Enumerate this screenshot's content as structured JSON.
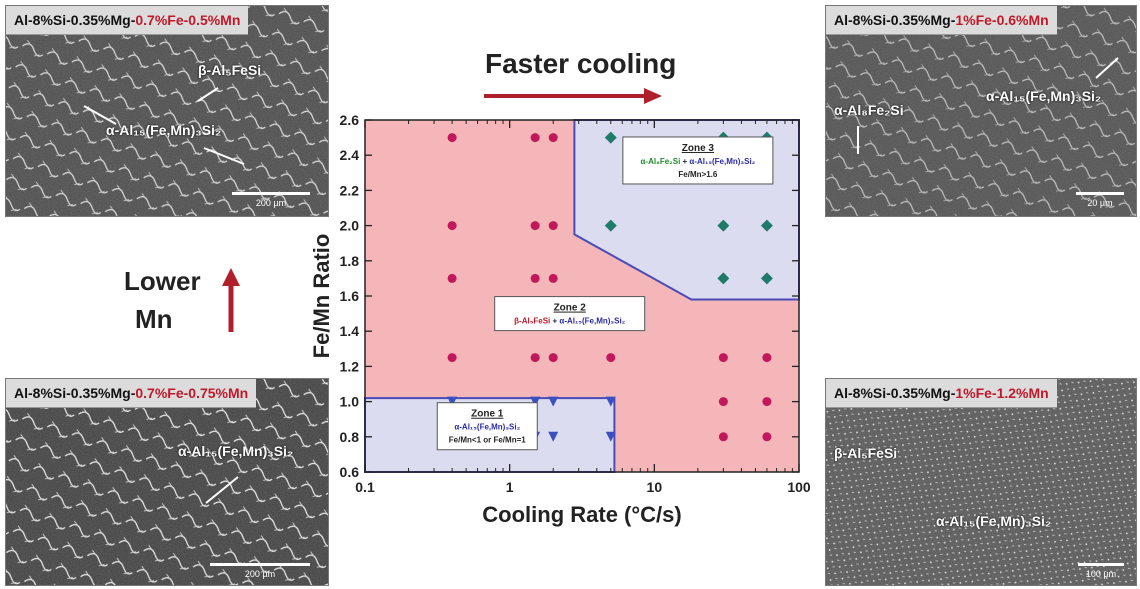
{
  "panels": {
    "top_left": {
      "caption_prefix": "Al-8%Si-0.35%Mg-",
      "caption_highlight": "0.7%Fe-0.5%Mn",
      "phase_a": "β-Al₅FeSi",
      "phase_b": "α-Al₁₅(Fe,Mn)₃Si₂",
      "scalebar": "200 µm"
    },
    "top_right": {
      "caption_prefix": "Al-8%Si-0.35%Mg-",
      "caption_highlight": "1%Fe-0.6%Mn",
      "phase_a": "α-Al₈Fe₂Si",
      "phase_b": "α-Al₁₅(Fe,Mn)₃Si₂",
      "scalebar": "20 µm"
    },
    "bottom_left": {
      "caption_prefix": "Al-8%Si-0.35%Mg-",
      "caption_highlight": "0.7%Fe-0.75%Mn",
      "phase_a": "α-Al₁₅(Fe,Mn)₃Si₂",
      "scalebar": "200 µm"
    },
    "bottom_right": {
      "caption_prefix": "Al-8%Si-0.35%Mg-",
      "caption_highlight": "1%Fe-1.2%Mn",
      "phase_a": "β-Al₅FeSi",
      "phase_b": "α-Al₁₅(Fe,Mn)₃Si₂",
      "scalebar": "100 µm"
    }
  },
  "annotations": {
    "faster_cooling": "Faster cooling",
    "lower_mn_line1": "Lower",
    "lower_mn_line2": "Mn"
  },
  "colors": {
    "highlight_red": "#c0192a",
    "arrow_red": "#b0202a",
    "zone2_fill": "#f4b6b9",
    "zone13_fill": "#dcdcf0",
    "zone_border": "#4a4ab8",
    "circle_marker": "#c2185b",
    "triangle_marker": "#3b4fc0",
    "diamond_marker": "#1f7a6a",
    "phase_green": "#1f8a2e",
    "phase_blue": "#2a2aa8"
  },
  "chart_data": {
    "type": "scatter",
    "xlabel": "Cooling Rate (°C/s)",
    "ylabel": "Fe/Mn Ratio",
    "x_scale": "log",
    "xlim": [
      0.1,
      100
    ],
    "ylim": [
      0.6,
      2.6
    ],
    "x_ticks": [
      "0.1",
      "1",
      "10",
      "100"
    ],
    "y_ticks": [
      "0.6",
      "0.8",
      "1.0",
      "1.2",
      "1.4",
      "1.6",
      "1.8",
      "2.0",
      "2.2",
      "2.4",
      "2.6"
    ],
    "zones": [
      {
        "name": "Zone 1",
        "phase_a": "α-Al₁₅(Fe,Mn)₃Si₂",
        "condition": "Fe/Mn<1 or Fe/Mn=1",
        "boundary": [
          [
            0.1,
            0.6
          ],
          [
            0.1,
            1.02
          ],
          [
            5.3,
            1.02
          ],
          [
            5.3,
            0.6
          ]
        ]
      },
      {
        "name": "Zone 2",
        "phase_a": "β-Al₅FeSi",
        "joiner": " + ",
        "phase_b": "α-Al₁₅(Fe,Mn)₃Si₂"
      },
      {
        "name": "Zone 3",
        "phase_a": "α-Al₈Fe₂Si",
        "joiner": " + ",
        "phase_b": "α-Al₁₅(Fe,Mn)₃Si₂",
        "condition": "Fe/Mn>1.6",
        "boundary": [
          [
            2.8,
            2.6
          ],
          [
            2.8,
            1.95
          ],
          [
            18,
            1.58
          ],
          [
            100,
            1.58
          ],
          [
            100,
            2.6
          ]
        ]
      }
    ],
    "series": [
      {
        "marker": "circle",
        "points": [
          [
            0.4,
            2.5
          ],
          [
            1.5,
            2.5
          ],
          [
            2.0,
            2.5
          ],
          [
            0.4,
            2.0
          ],
          [
            1.5,
            2.0
          ],
          [
            2.0,
            2.0
          ],
          [
            0.4,
            1.7
          ],
          [
            1.5,
            1.7
          ],
          [
            2.0,
            1.7
          ],
          [
            0.4,
            1.25
          ],
          [
            1.5,
            1.25
          ],
          [
            2.0,
            1.25
          ],
          [
            5.0,
            1.25
          ],
          [
            30,
            1.25
          ],
          [
            60,
            1.25
          ],
          [
            30,
            1.0
          ],
          [
            60,
            1.0
          ],
          [
            30,
            0.8
          ],
          [
            60,
            0.8
          ]
        ]
      },
      {
        "marker": "triangle",
        "points": [
          [
            0.4,
            1.0
          ],
          [
            1.5,
            1.0
          ],
          [
            2.0,
            1.0
          ],
          [
            5.0,
            1.0
          ],
          [
            0.4,
            0.8
          ],
          [
            1.5,
            0.8
          ],
          [
            2.0,
            0.8
          ],
          [
            5.0,
            0.8
          ]
        ]
      },
      {
        "marker": "diamond",
        "points": [
          [
            5.0,
            2.5
          ],
          [
            30,
            2.5
          ],
          [
            60,
            2.5
          ],
          [
            5.0,
            2.0
          ],
          [
            30,
            2.0
          ],
          [
            60,
            2.0
          ],
          [
            30,
            1.7
          ],
          [
            60,
            1.7
          ]
        ]
      }
    ]
  }
}
